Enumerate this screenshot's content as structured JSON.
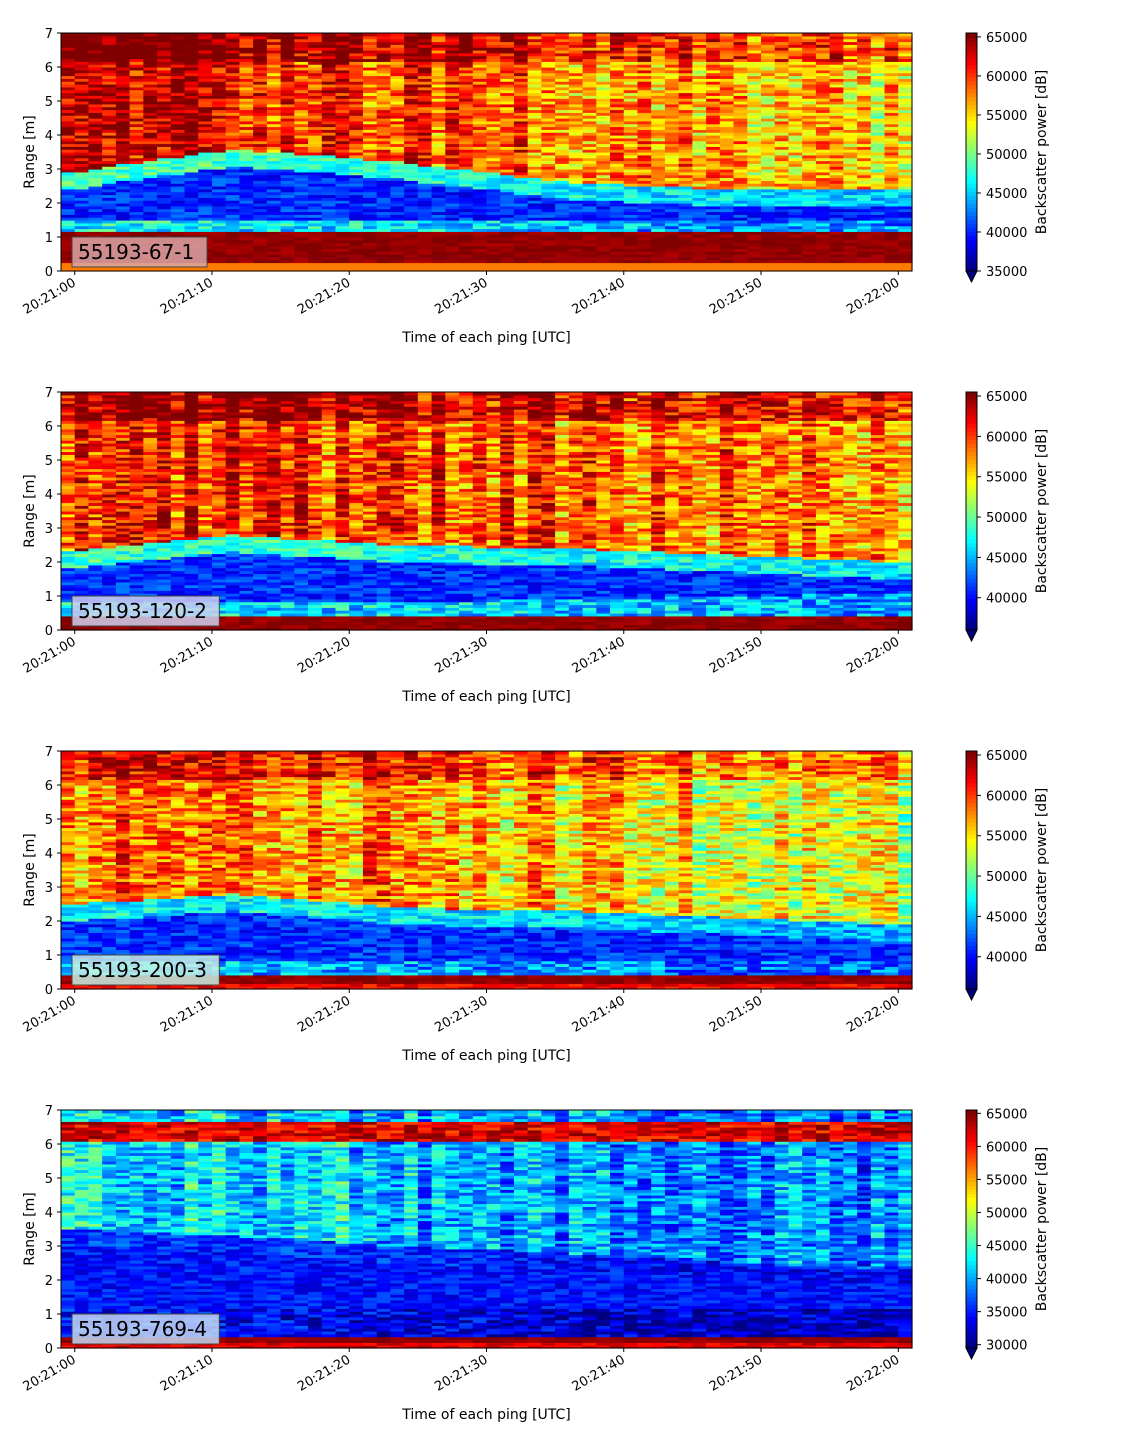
{
  "chart_data": [
    {
      "type": "heatmap",
      "panel_label": "55193-67-1",
      "label_box_color": "#d9a5a6",
      "xlabel": "Time of each ping [UTC]",
      "ylabel": "Range [m]",
      "colorbar_label": "Backscatter power [dB]",
      "colormap": "jet",
      "xticks": [
        "20:21:00",
        "20:21:10",
        "20:21:20",
        "20:21:30",
        "20:21:40",
        "20:21:50",
        "20:22:00"
      ],
      "xlim_seconds": [
        -1,
        61
      ],
      "yticks": [
        0,
        1,
        2,
        3,
        4,
        5,
        6,
        7
      ],
      "ylim": [
        0,
        7
      ],
      "clim": [
        35000,
        65500
      ],
      "cbar_ticks": [
        35000,
        40000,
        45000,
        50000,
        55000,
        60000,
        65000
      ],
      "cbar_extend_min": true,
      "features": {
        "bottom_band": [
          0.25,
          1.15
        ],
        "low_band_top": [
          2.4,
          3.1,
          2.7,
          2.1,
          1.9,
          1.9
        ],
        "low_band_bottom": [
          1.5,
          1.5,
          1.5,
          1.5,
          1.5,
          1.5
        ],
        "upper_levels": [
          62000,
          62000,
          60000,
          58000,
          56000,
          55000
        ]
      }
    },
    {
      "type": "heatmap",
      "panel_label": "55193-120-2",
      "label_box_color": "#cfd0ee",
      "xlabel": "Time of each ping [UTC]",
      "ylabel": "Range [m]",
      "colorbar_label": "Backscatter power [dB]",
      "colormap": "jet",
      "xticks": [
        "20:21:00",
        "20:21:10",
        "20:21:20",
        "20:21:30",
        "20:21:40",
        "20:21:50",
        "20:22:00"
      ],
      "xlim_seconds": [
        -1,
        61
      ],
      "yticks": [
        0,
        1,
        2,
        3,
        4,
        5,
        6,
        7
      ],
      "ylim": [
        0,
        7
      ],
      "clim": [
        36000,
        65500
      ],
      "cbar_ticks": [
        40000,
        45000,
        50000,
        55000,
        60000,
        65000
      ],
      "cbar_extend_min": true,
      "features": {
        "bottom_band": [
          0.0,
          0.45
        ],
        "low_band_top": [
          1.8,
          2.3,
          2.0,
          1.9,
          1.7,
          1.5
        ],
        "low_band_bottom": [
          0.8,
          0.8,
          0.85,
          0.9,
          1.0,
          1.1
        ],
        "upper_levels": [
          61000,
          61000,
          60000,
          59000,
          58000,
          57000
        ]
      }
    },
    {
      "type": "heatmap",
      "panel_label": "55193-200-3",
      "label_box_color": "#c8f0e4",
      "xlabel": "Time of each ping [UTC]",
      "ylabel": "Range [m]",
      "colorbar_label": "Backscatter power [dB]",
      "colormap": "jet",
      "xticks": [
        "20:21:00",
        "20:21:10",
        "20:21:20",
        "20:21:30",
        "20:21:40",
        "20:21:50",
        "20:22:00"
      ],
      "xlim_seconds": [
        -1,
        61
      ],
      "yticks": [
        0,
        1,
        2,
        3,
        4,
        5,
        6,
        7
      ],
      "ylim": [
        0,
        7
      ],
      "clim": [
        36000,
        65500
      ],
      "cbar_ticks": [
        40000,
        45000,
        50000,
        55000,
        60000,
        65000
      ],
      "cbar_extend_min": true,
      "features": {
        "bottom_band": [
          0.15,
          0.45
        ],
        "low_band_top": [
          2.0,
          2.3,
          1.9,
          1.8,
          1.6,
          1.4
        ],
        "low_band_bottom": [
          0.8,
          0.8,
          0.8,
          0.8,
          0.8,
          0.8
        ],
        "upper_levels": [
          58000,
          58000,
          57000,
          56000,
          54000,
          53000
        ]
      }
    },
    {
      "type": "heatmap",
      "panel_label": "55193-769-4",
      "label_box_color": "#c3d8f5",
      "xlabel": "Time of each ping [UTC]",
      "ylabel": "Range [m]",
      "colorbar_label": "Backscatter power [dB]",
      "colormap": "jet",
      "xticks": [
        "20:21:00",
        "20:21:10",
        "20:21:20",
        "20:21:30",
        "20:21:40",
        "20:21:50",
        "20:22:00"
      ],
      "xlim_seconds": [
        -1,
        61
      ],
      "yticks": [
        0,
        1,
        2,
        3,
        4,
        5,
        6,
        7
      ],
      "ylim": [
        0,
        7
      ],
      "clim": [
        29500,
        65500
      ],
      "cbar_ticks": [
        30000,
        35000,
        40000,
        45000,
        50000,
        55000,
        60000,
        65000
      ],
      "cbar_extend_min": true,
      "features": {
        "bottom_band": [
          0.15,
          0.35
        ],
        "top_band": [
          6.1,
          6.7
        ],
        "low_band_top": [
          3.0,
          2.8,
          2.5,
          2.3,
          2.0,
          1.8
        ],
        "low_band_bottom": [
          1.2,
          1.2,
          1.2,
          1.2,
          1.2,
          1.2
        ],
        "upper_levels": [
          42000,
          42000,
          41000,
          39000,
          38000,
          38000
        ]
      }
    }
  ]
}
